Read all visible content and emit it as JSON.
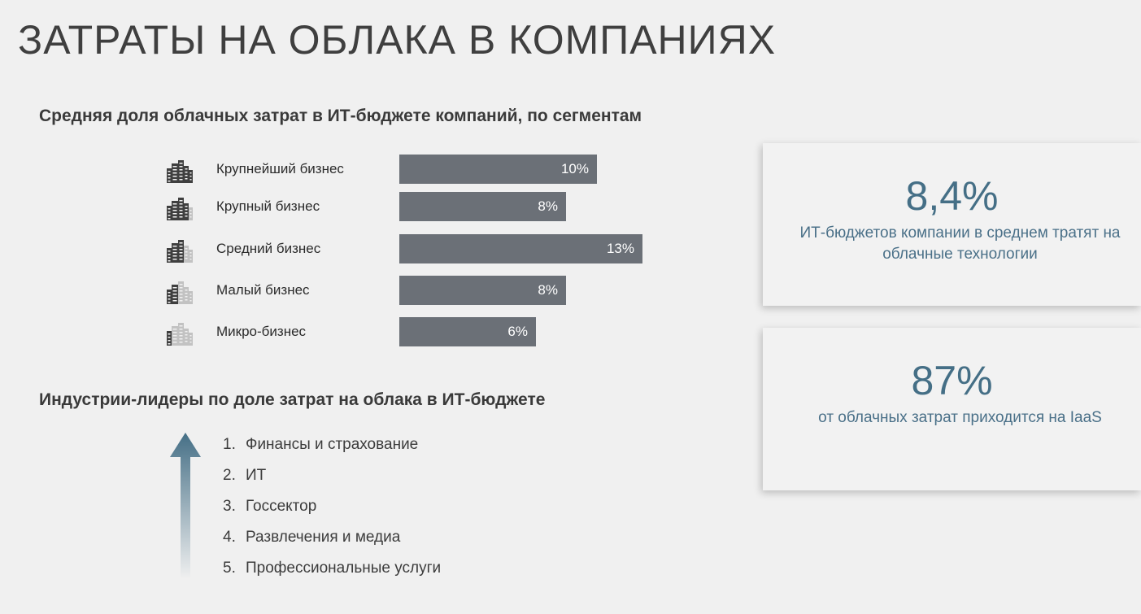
{
  "page": {
    "title": "ЗАТРАТЫ НА ОБЛАКА В КОМПАНИЯХ"
  },
  "segments_section": {
    "heading": "Средняя доля облачных затрат в ИТ-бюджете компаний, по сегментам"
  },
  "chart_data": {
    "type": "bar",
    "orientation": "horizontal",
    "categories": [
      "Крупнейший бизнес",
      "Крупный бизнес",
      "Средний бизнес",
      "Малый бизнес",
      "Микро-бизнес"
    ],
    "values": [
      10,
      8,
      13,
      8,
      6
    ],
    "value_labels": [
      "10%",
      "8%",
      "13%",
      "8%",
      "6%"
    ],
    "unit": "%",
    "bar_color": "#6b7077",
    "icon_names": [
      "buildings-icon-5-dark",
      "buildings-icon-4-dark",
      "buildings-icon-3-dark",
      "buildings-icon-2-dark",
      "buildings-icon-1-dark"
    ]
  },
  "industries_section": {
    "heading": "Индустрии-лидеры по доле затрат на облака в ИТ-бюджете",
    "items": [
      {
        "num": "1.",
        "label": "Финансы и страхование"
      },
      {
        "num": "2.",
        "label": "ИТ"
      },
      {
        "num": "3.",
        "label": "Госсектор"
      },
      {
        "num": "4.",
        "label": "Развлечения и медиа"
      },
      {
        "num": "5.",
        "label": "Профессиональные услуги"
      }
    ],
    "arrow_icon": "up-arrow-icon",
    "arrow_color": "#456f86"
  },
  "stats": [
    {
      "value": "8,4%",
      "description": "ИТ-бюджетов компании в среднем тратят на облачные технологии"
    },
    {
      "value": "87%",
      "description": "от облачных затрат приходится на IaaS"
    }
  ],
  "colors": {
    "accent": "#456f86",
    "background": "#f0f0f0"
  }
}
